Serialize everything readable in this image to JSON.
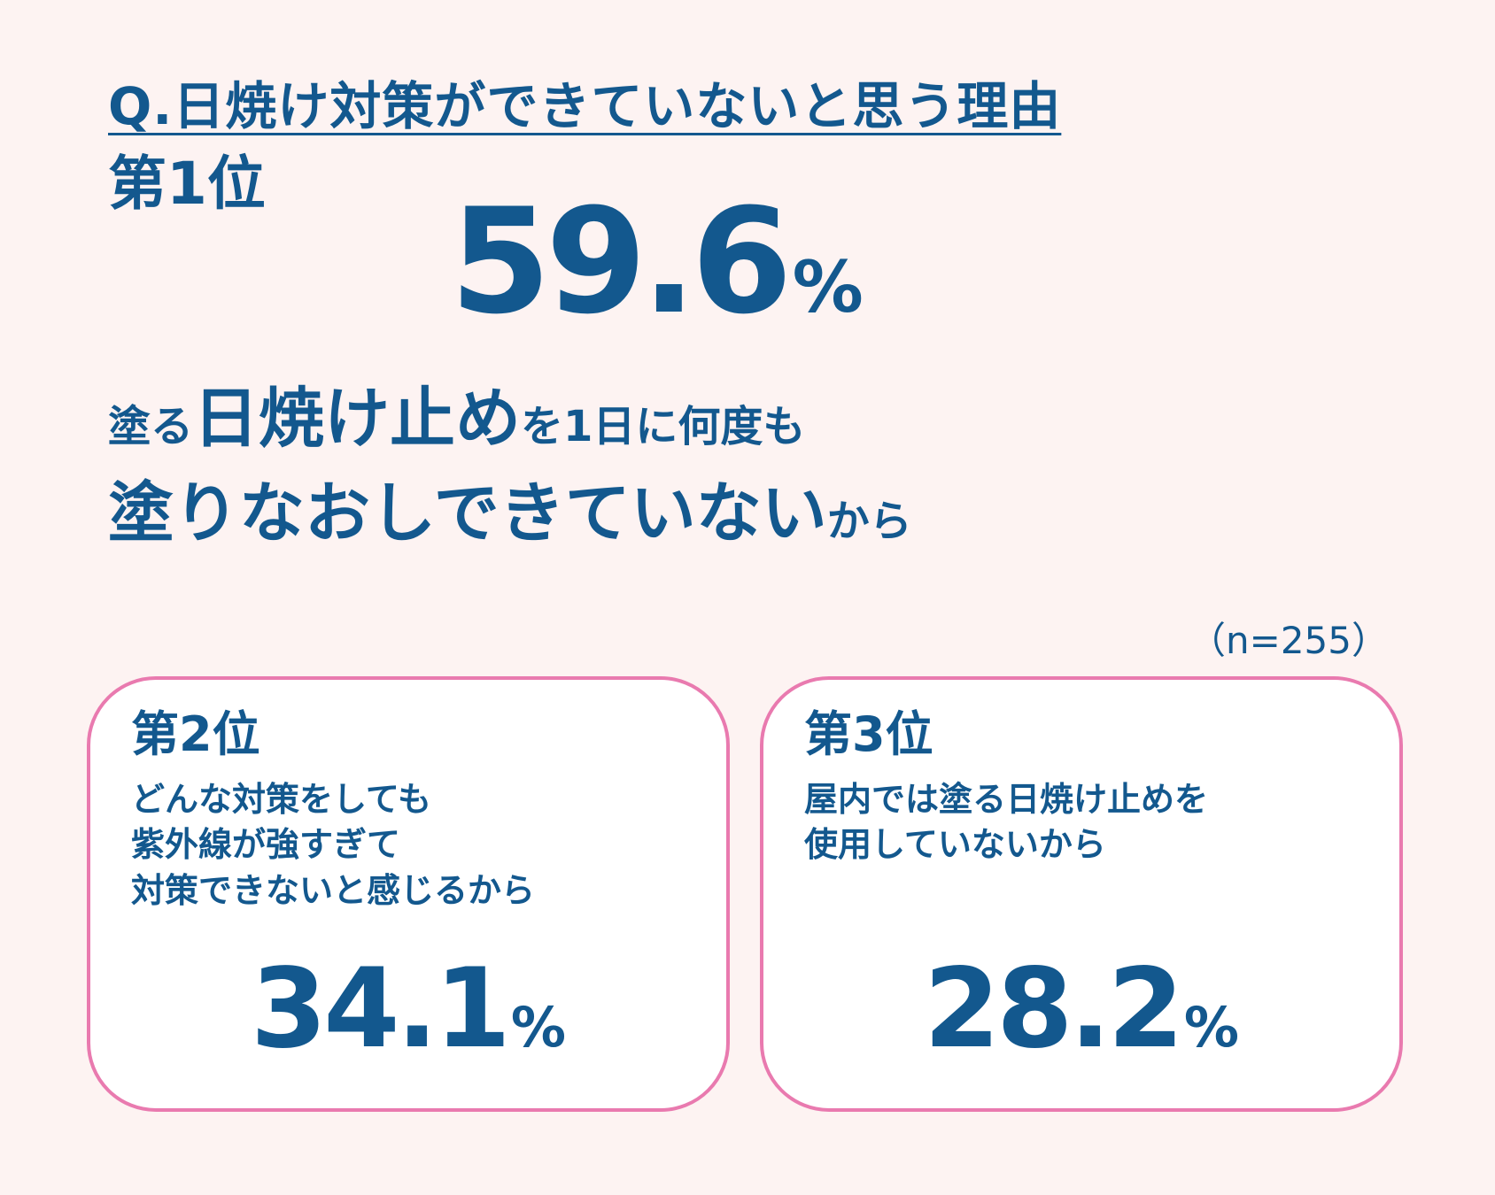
{
  "question": "Q.日焼け対策ができていないと思う理由",
  "first": {
    "rank": "第1位",
    "value": "59.6",
    "unit": "%",
    "reason_line1": {
      "part1": "塗る",
      "part2": "日焼け止め",
      "part3": "を1日に何度も"
    },
    "reason_line2": {
      "part1": "塗りなおしできていない",
      "part2": "から"
    }
  },
  "sample_size": "（n=255）",
  "second": {
    "rank": "第2位",
    "reason_lines": [
      "どんな対策をしても",
      "紫外線が強すぎて",
      "対策できないと感じるから"
    ],
    "value": "34.1",
    "unit": "%"
  },
  "third": {
    "rank": "第3位",
    "reason_lines": [
      "屋内では塗る日焼け止めを",
      "使用していないから"
    ],
    "value": "28.2",
    "unit": "%"
  },
  "colors": {
    "text": "#13588e",
    "background": "#fdf3f2",
    "card_border": "#e97aaf",
    "card_background": "#ffffff"
  }
}
